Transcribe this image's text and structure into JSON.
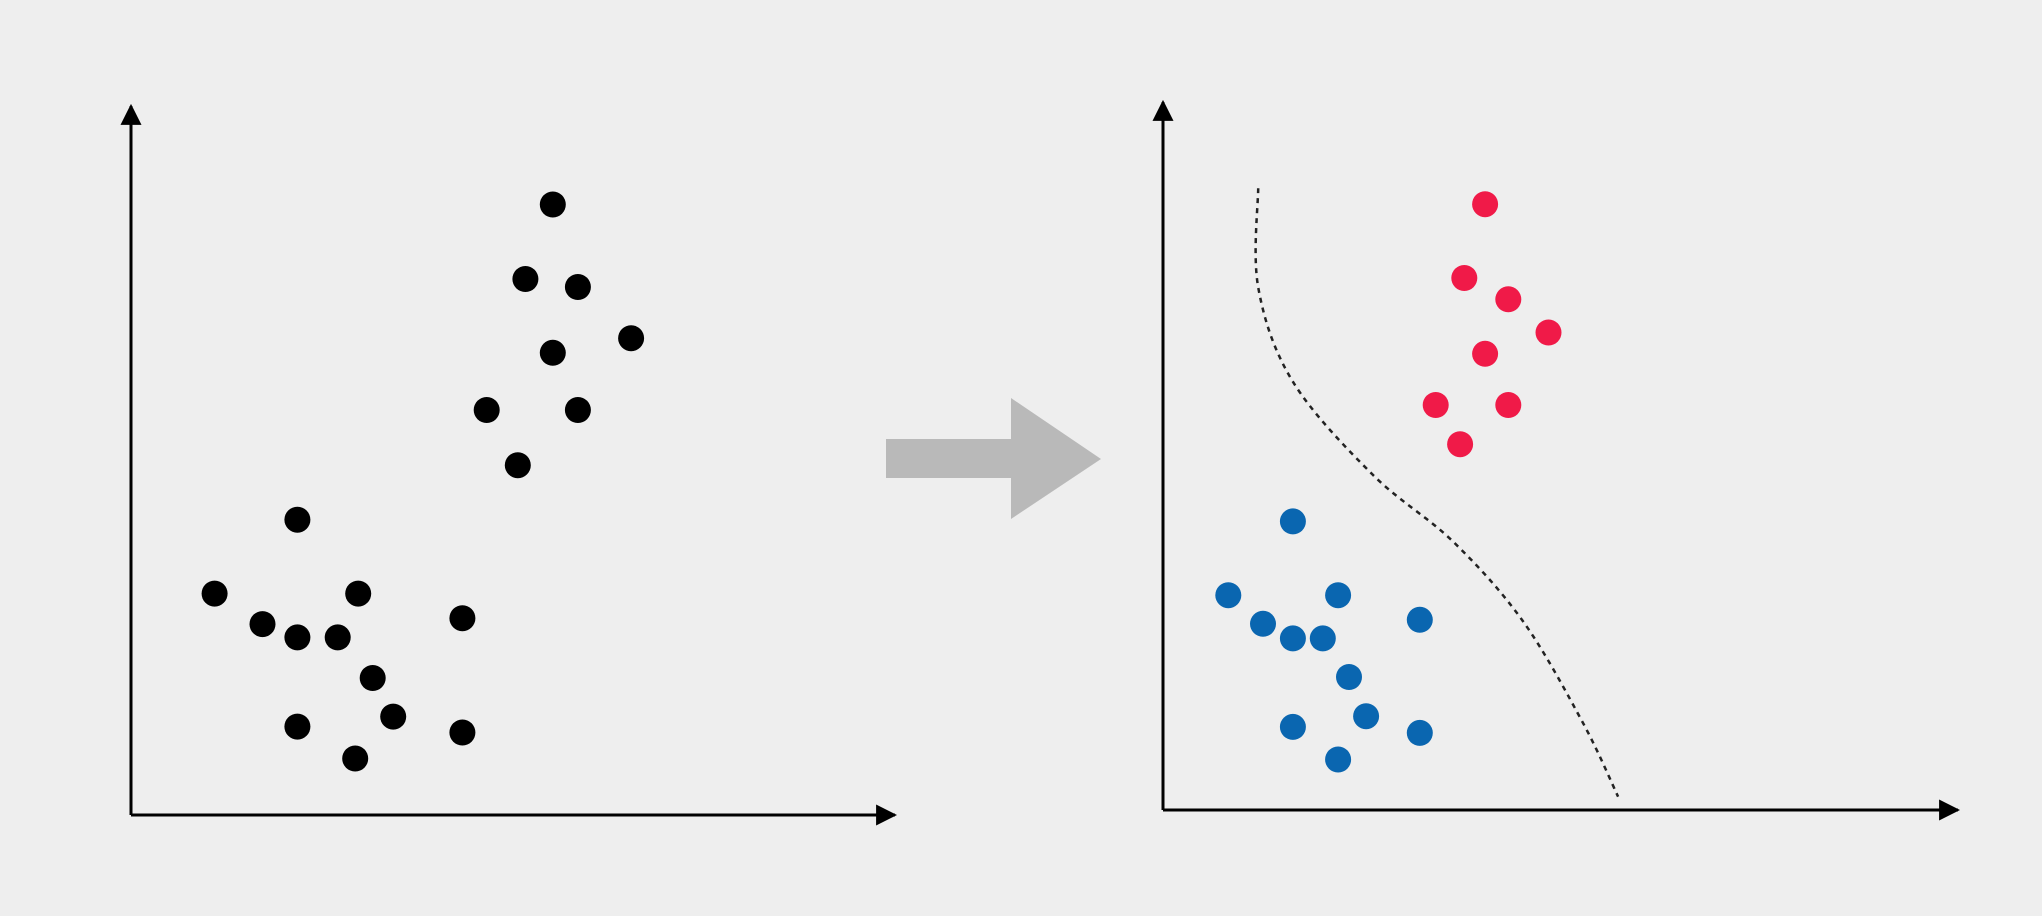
{
  "colors": {
    "background": "#eeeeee",
    "axis": "#000000",
    "unlabeled_point": "#000000",
    "cluster_a": "#f01a48",
    "cluster_b": "#0a66b0",
    "arrow": "#b9b9b9",
    "boundary": "#222222"
  },
  "arrow_icon": "right-arrow-icon",
  "chart_data": [
    {
      "type": "scatter",
      "title": "",
      "xlabel": "",
      "ylabel": "",
      "grid": false,
      "xlim": [
        0,
        100
      ],
      "ylim": [
        0,
        100
      ],
      "series": [
        {
          "color": "#000000",
          "points": [
            [
              55.5,
              91.8
            ],
            [
              51.9,
              80.6
            ],
            [
              58.8,
              79.4
            ],
            [
              65.8,
              71.7
            ],
            [
              55.5,
              69.5
            ],
            [
              46.8,
              60.9
            ],
            [
              58.8,
              60.9
            ],
            [
              50.9,
              52.6
            ],
            [
              21.9,
              44.4
            ],
            [
              11.0,
              33.3
            ],
            [
              29.9,
              33.3
            ],
            [
              17.3,
              28.7
            ],
            [
              21.9,
              26.7
            ],
            [
              27.2,
              26.7
            ],
            [
              43.6,
              29.6
            ],
            [
              31.8,
              20.6
            ],
            [
              34.5,
              14.8
            ],
            [
              21.9,
              13.3
            ],
            [
              29.5,
              8.5
            ],
            [
              43.6,
              12.4
            ]
          ]
        }
      ]
    },
    {
      "type": "scatter",
      "title": "",
      "xlabel": "",
      "ylabel": "",
      "grid": false,
      "xlim": [
        0,
        100
      ],
      "ylim": [
        0,
        100
      ],
      "series": [
        {
          "color": "#f01a48",
          "points": [
            [
              52.8,
              91.1
            ],
            [
              49.4,
              80.0
            ],
            [
              56.6,
              76.8
            ],
            [
              63.2,
              71.8
            ],
            [
              52.8,
              68.6
            ],
            [
              44.7,
              60.9
            ],
            [
              56.6,
              60.9
            ],
            [
              48.7,
              55.0
            ]
          ]
        },
        {
          "color": "#0a66b0",
          "points": [
            [
              21.3,
              43.4
            ],
            [
              10.7,
              32.3
            ],
            [
              28.7,
              32.3
            ],
            [
              16.4,
              28.0
            ],
            [
              21.3,
              25.8
            ],
            [
              26.2,
              25.8
            ],
            [
              42.1,
              28.6
            ],
            [
              30.5,
              20.0
            ],
            [
              33.3,
              14.1
            ],
            [
              21.3,
              12.5
            ],
            [
              28.7,
              7.6
            ],
            [
              42.1,
              11.6
            ]
          ]
        }
      ],
      "boundary_curve": [
        [
          15.6,
          93.5
        ],
        [
          15.6,
          78.6
        ],
        [
          21.3,
          64.4
        ],
        [
          34.4,
          50.4
        ],
        [
          47.5,
          40.4
        ],
        [
          59.0,
          28.4
        ],
        [
          68.9,
          13.0
        ],
        [
          74.6,
          2.0
        ]
      ]
    }
  ]
}
